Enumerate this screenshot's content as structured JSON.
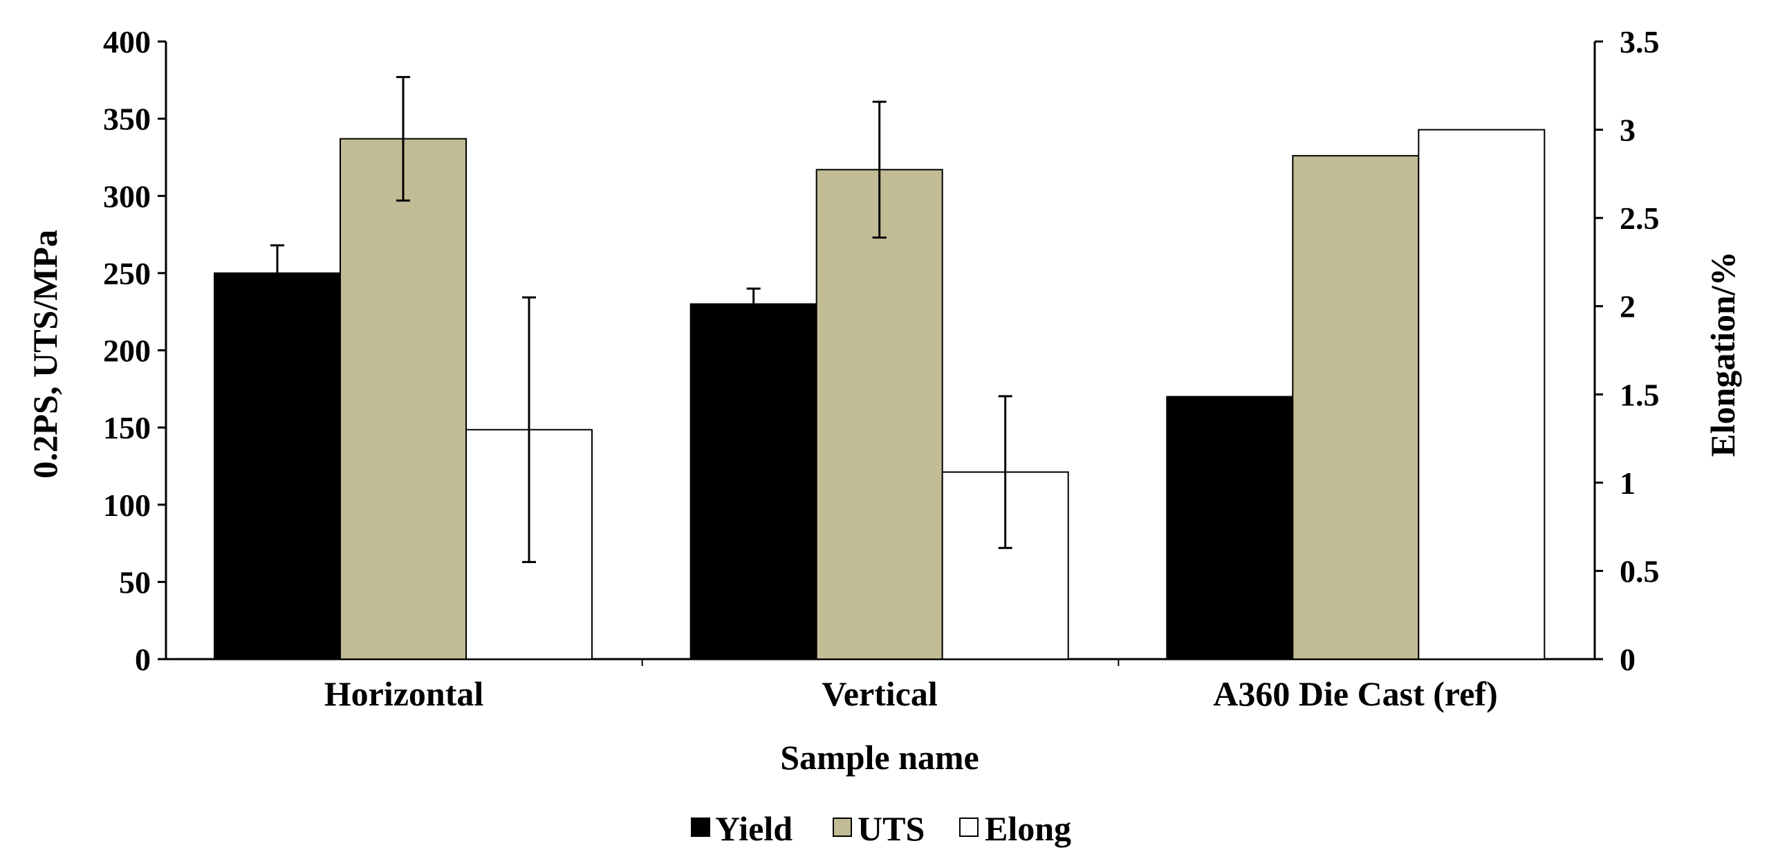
{
  "chart_data": {
    "type": "bar",
    "title": "",
    "xlabel": "Sample name",
    "ylabel": "0.2PS, UTS/MPa",
    "y2label": "Elongation/%",
    "ylim": [
      0,
      400
    ],
    "y2lim": [
      0,
      3.5
    ],
    "yticks": [
      "0",
      "50",
      "100",
      "150",
      "200",
      "250",
      "300",
      "350",
      "400"
    ],
    "y2ticks": [
      "0",
      "0.5",
      "1",
      "1.5",
      "2",
      "2.5",
      "3",
      "3.5"
    ],
    "categories": [
      "Horizontal",
      "Vertical",
      "A360 Die Cast (ref)"
    ],
    "series": [
      {
        "name": "Yield",
        "axis": "left",
        "color": "#000000",
        "values": [
          250,
          230,
          170
        ],
        "errors": [
          18,
          10,
          null
        ]
      },
      {
        "name": "UTS",
        "axis": "left",
        "color": "#c1bc95",
        "values": [
          337,
          317,
          326
        ],
        "errors": [
          40,
          44,
          null
        ]
      },
      {
        "name": "Elong",
        "axis": "right",
        "color": "#ffffff",
        "values": [
          1.3,
          1.06,
          3.0
        ],
        "errors": [
          0.75,
          0.43,
          null
        ]
      }
    ],
    "legend_position": "bottom",
    "grid": false
  }
}
